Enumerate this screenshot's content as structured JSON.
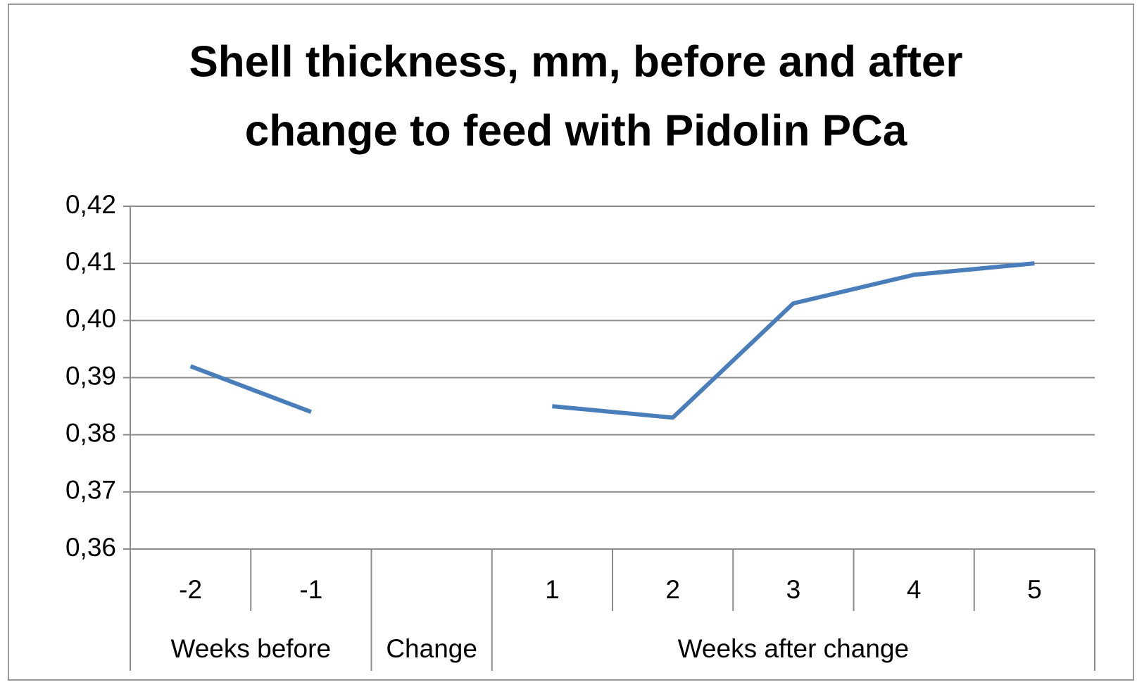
{
  "chart_data": {
    "type": "line",
    "title": [
      "Shell thickness, mm, before and after",
      "change to feed with Pidolin PCa"
    ],
    "categories": [
      "-2",
      "-1",
      null,
      "1",
      "2",
      "3",
      "4",
      "5"
    ],
    "groups": [
      {
        "name": "Weeks before",
        "count": 2
      },
      {
        "name": "Change",
        "count": 1
      },
      {
        "name": "Weeks after change",
        "count": 5
      }
    ],
    "series": [
      {
        "name": "Shell thickness",
        "color": "#4a7ebb",
        "values": [
          0.392,
          0.384,
          null,
          0.385,
          0.383,
          0.403,
          0.408,
          0.41
        ]
      }
    ],
    "ylim": [
      0.36,
      0.42
    ],
    "yticks": [
      {
        "value": 0.36,
        "label": "0,36"
      },
      {
        "value": 0.37,
        "label": "0,37"
      },
      {
        "value": 0.38,
        "label": "0,38"
      },
      {
        "value": 0.39,
        "label": "0,39"
      },
      {
        "value": 0.4,
        "label": "0,40"
      },
      {
        "value": 0.41,
        "label": "0,41"
      },
      {
        "value": 0.42,
        "label": "0,42"
      }
    ],
    "grid": true
  }
}
